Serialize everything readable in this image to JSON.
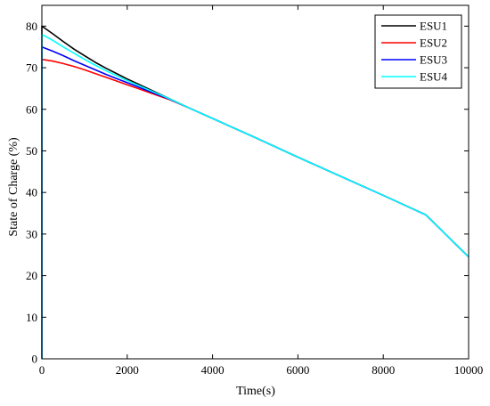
{
  "chart_data": {
    "type": "line",
    "title": "",
    "xlabel": "Time(s)",
    "ylabel": "State of Charge (%)",
    "xlim": [
      0,
      10000
    ],
    "ylim": [
      0,
      85
    ],
    "xticks": [
      0,
      2000,
      4000,
      6000,
      8000,
      10000
    ],
    "yticks": [
      0,
      10,
      20,
      30,
      40,
      50,
      60,
      70,
      80
    ],
    "grid": false,
    "legend_position": "top-right",
    "series": [
      {
        "name": "ESU1",
        "color": "#000000",
        "x": [
          0,
          0,
          250,
          500,
          750,
          1000,
          1250,
          1500,
          1750,
          2000,
          2250,
          2500,
          2750,
          3000,
          3500,
          4000,
          5000,
          6000,
          7000,
          8000,
          9000,
          10000
        ],
        "y": [
          0,
          80,
          78.2,
          76.3,
          74.5,
          72.9,
          71.3,
          69.9,
          68.6,
          67.3,
          66.1,
          64.9,
          63.7,
          62.5,
          60.1,
          57.8,
          53.2,
          48.5,
          43.9,
          39.3,
          34.6,
          24.5
        ]
      },
      {
        "name": "ESU2",
        "color": "#ff0000",
        "x": [
          0,
          0,
          250,
          500,
          750,
          1000,
          1250,
          1500,
          1750,
          2000,
          2250,
          2500,
          2750,
          3000,
          3500,
          4000,
          5000,
          6000,
          7000,
          8000,
          9000,
          10000
        ],
        "y": [
          0,
          72,
          71.6,
          71.0,
          70.3,
          69.5,
          68.6,
          67.7,
          66.8,
          65.9,
          65.0,
          64.1,
          63.2,
          62.3,
          60.1,
          57.8,
          53.2,
          48.5,
          43.9,
          39.3,
          34.6,
          24.5
        ]
      },
      {
        "name": "ESU3",
        "color": "#0000ff",
        "x": [
          0,
          0,
          250,
          500,
          750,
          1000,
          1250,
          1500,
          1750,
          2000,
          2250,
          2500,
          2750,
          3000,
          3500,
          4000,
          5000,
          6000,
          7000,
          8000,
          9000,
          10000
        ],
        "y": [
          0,
          75,
          74.0,
          72.9,
          71.7,
          70.6,
          69.5,
          68.4,
          67.4,
          66.4,
          65.4,
          64.4,
          63.4,
          62.4,
          60.1,
          57.8,
          53.2,
          48.5,
          43.9,
          39.3,
          34.6,
          24.5
        ]
      },
      {
        "name": "ESU4",
        "color": "#00ffff",
        "x": [
          0,
          0,
          250,
          500,
          750,
          1000,
          1250,
          1500,
          1750,
          2000,
          2250,
          2500,
          2750,
          3000,
          3500,
          4000,
          5000,
          6000,
          7000,
          8000,
          9000,
          10000
        ],
        "y": [
          0,
          78,
          76.6,
          75.0,
          73.5,
          72.0,
          70.6,
          69.3,
          68.1,
          66.9,
          65.8,
          64.7,
          63.6,
          62.5,
          60.1,
          57.8,
          53.2,
          48.5,
          43.9,
          39.3,
          34.6,
          24.5
        ]
      }
    ]
  }
}
